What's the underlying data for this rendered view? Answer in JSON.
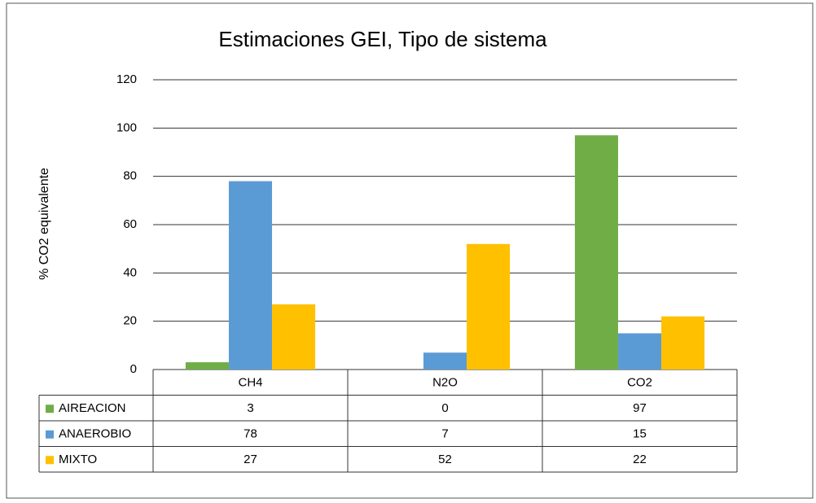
{
  "chart_data": {
    "type": "bar",
    "title": "Estimaciones GEI, Tipo de sistema",
    "y_label": "% CO2 equivalente",
    "categories": [
      "CH4",
      "N2O",
      "CO2"
    ],
    "series": [
      {
        "name": "AIREACION",
        "color": "#70ad47",
        "values": [
          3,
          0,
          97
        ]
      },
      {
        "name": "ANAEROBIO",
        "color": "#5b9bd5",
        "values": [
          78,
          7,
          15
        ]
      },
      {
        "name": "MIXTO",
        "color": "#ffc000",
        "values": [
          27,
          52,
          22
        ]
      }
    ],
    "ylim": [
      0,
      120
    ],
    "yticks": [
      0,
      20,
      40,
      60,
      80,
      100,
      120
    ],
    "grid": true
  }
}
